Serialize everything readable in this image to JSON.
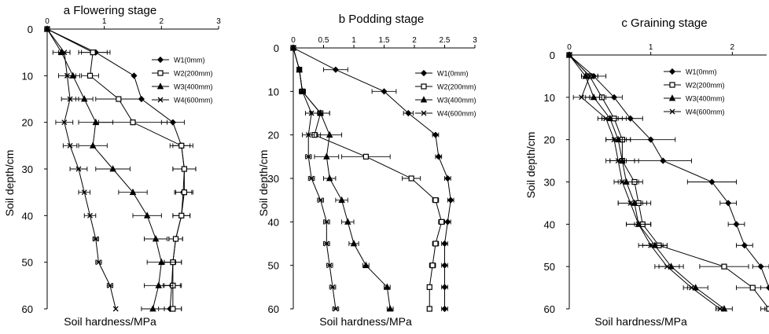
{
  "chart_data": [
    {
      "type": "line",
      "title": "a Flowering stage",
      "xlabel": "Soil hardness/MPa",
      "ylabel": "Soil depth/cm",
      "xlim": [
        0,
        3
      ],
      "ylim": [
        0,
        60
      ],
      "x_ticks": [
        "0",
        "1",
        "2",
        "3"
      ],
      "y_ticks": [
        "0",
        "10",
        "20",
        "30",
        "40",
        "50",
        "60"
      ],
      "depths": [
        0,
        5,
        10,
        15,
        20,
        25,
        30,
        35,
        40,
        45,
        50,
        55,
        60
      ],
      "legend_position": "right",
      "series": [
        {
          "name": "W1(0mm)",
          "marker": "diamond",
          "values": [
            0,
            0.85,
            1.52,
            1.65,
            2.2,
            2.35,
            2.4,
            2.38,
            2.35,
            2.25,
            2.2,
            2.18,
            2.15
          ],
          "errors": [
            0,
            0.25,
            0,
            0,
            0.2,
            0.15,
            0.2,
            0.15,
            0.15,
            0.12,
            0.15,
            0.15,
            0.2
          ]
        },
        {
          "name": "W2(200mm)",
          "marker": "square",
          "values": [
            0,
            0.8,
            0.75,
            1.25,
            1.5,
            2.35,
            2.4,
            2.4,
            2.35,
            2.25,
            2.2,
            2.2,
            2.2
          ],
          "errors": [
            0,
            0.25,
            0.15,
            0.4,
            0.6,
            0.2,
            0.2,
            0.15,
            0.15,
            0.12,
            0.15,
            0.15,
            0.15
          ]
        },
        {
          "name": "W3(400mm)",
          "marker": "triangle",
          "values": [
            0,
            0.25,
            0.45,
            0.65,
            0.85,
            0.8,
            1.15,
            1.5,
            1.75,
            1.9,
            2.0,
            1.95,
            1.85
          ],
          "errors": [
            0,
            0.15,
            0.12,
            0.15,
            0.3,
            0.25,
            0.3,
            0.25,
            0.25,
            0.2,
            0.25,
            0.25,
            0.2
          ]
        },
        {
          "name": "W4(600mm)",
          "marker": "x",
          "values": [
            0,
            0.3,
            0.35,
            0.4,
            0.3,
            0.4,
            0.55,
            0.65,
            0.75,
            0.85,
            0.9,
            1.1,
            1.2
          ],
          "errors": [
            0,
            0.1,
            0.15,
            0.15,
            0.15,
            0.12,
            0.15,
            0.1,
            0.1,
            0.05,
            0.05,
            0.05,
            0
          ]
        }
      ]
    },
    {
      "type": "line",
      "title": "b Podding stage",
      "xlabel": "Soil hardness/MPa",
      "ylabel": "Soil depth/cm",
      "xlim": [
        0,
        3
      ],
      "ylim": [
        0,
        60
      ],
      "x_ticks": [
        "0",
        "0.5",
        "1",
        "1.5",
        "2",
        "2.5",
        "3"
      ],
      "y_ticks": [
        "0",
        "10",
        "20",
        "30",
        "40",
        "50",
        "60"
      ],
      "depths": [
        0,
        5,
        10,
        15,
        20,
        25,
        30,
        35,
        40,
        45,
        50,
        55,
        60
      ],
      "legend_position": "right",
      "series": [
        {
          "name": "W1(0mm)",
          "marker": "diamond",
          "values": [
            0,
            0.7,
            1.5,
            1.9,
            2.35,
            2.4,
            2.55,
            2.6,
            2.55,
            2.5,
            2.5,
            2.5,
            2.5
          ],
          "errors": [
            0,
            0.2,
            0.2,
            0.08,
            0.05,
            0.05,
            0.05,
            0.05,
            0.05,
            0.05,
            0.05,
            0.05,
            0.05
          ]
        },
        {
          "name": "W2(200mm)",
          "marker": "square",
          "values": [
            0,
            0.1,
            0.15,
            0.45,
            0.35,
            1.2,
            1.95,
            2.35,
            2.45,
            2.35,
            2.3,
            2.25,
            2.25
          ],
          "errors": [
            0,
            0.03,
            0.05,
            0.15,
            0.1,
            0.4,
            0.15,
            0.05,
            0.05,
            0.05,
            0.05,
            0.03,
            0.03
          ]
        },
        {
          "name": "W3(400mm)",
          "marker": "triangle",
          "values": [
            0,
            0.1,
            0.15,
            0.45,
            0.6,
            0.55,
            0.6,
            0.8,
            0.9,
            1.0,
            1.2,
            1.55,
            1.6
          ],
          "errors": [
            0,
            0.03,
            0.05,
            0.15,
            0.2,
            0.2,
            0.1,
            0.1,
            0.1,
            0.08,
            0.05,
            0.05,
            0.05
          ]
        },
        {
          "name": "W4(600mm)",
          "marker": "x",
          "values": [
            0,
            0.1,
            0.15,
            0.3,
            0.25,
            0.25,
            0.3,
            0.45,
            0.55,
            0.55,
            0.6,
            0.65,
            0.7
          ],
          "errors": [
            0,
            0.03,
            0.05,
            0.1,
            0.1,
            0.05,
            0.05,
            0.05,
            0.05,
            0.05,
            0.05,
            0.05,
            0.05
          ]
        }
      ]
    },
    {
      "type": "line",
      "title": "c Graining stage",
      "xlabel": "Soil hardness/MPa",
      "ylabel": "Soil depth/cm",
      "xlim": [
        0,
        3
      ],
      "ylim": [
        0,
        60
      ],
      "x_ticks": [
        "0",
        "1",
        "2"
      ],
      "y_ticks": [
        "0",
        "10",
        "20",
        "30",
        "40",
        "50",
        "60"
      ],
      "depths": [
        0,
        5,
        10,
        15,
        20,
        25,
        30,
        35,
        40,
        45,
        50,
        55,
        60
      ],
      "legend_position": "right",
      "series": [
        {
          "name": "W1(0mm)",
          "marker": "diamond",
          "values": [
            0,
            0.3,
            0.55,
            0.75,
            1.0,
            1.15,
            1.75,
            1.95,
            2.05,
            2.15,
            2.35,
            2.45,
            2.5
          ],
          "errors": [
            0,
            0.15,
            0.1,
            0.15,
            0.3,
            0.35,
            0.3,
            0.1,
            0.1,
            0.1,
            0.1,
            0.1,
            0.1
          ]
        },
        {
          "name": "W2(200mm)",
          "marker": "square",
          "values": [
            0,
            0.25,
            0.4,
            0.55,
            0.65,
            0.65,
            0.8,
            0.85,
            0.9,
            1.1,
            1.9,
            2.25,
            2.45
          ],
          "errors": [
            0,
            0.1,
            0.15,
            0.15,
            0.1,
            0.2,
            0.1,
            0.1,
            0.1,
            0.1,
            0.3,
            0.2,
            0.1
          ]
        },
        {
          "name": "W3(400mm)",
          "marker": "triangle",
          "values": [
            0,
            0.2,
            0.3,
            0.5,
            0.6,
            0.65,
            0.7,
            0.8,
            0.85,
            1.05,
            1.25,
            1.55,
            1.9
          ],
          "errors": [
            0,
            0.05,
            0.1,
            0.15,
            0.15,
            0.15,
            0.15,
            0.2,
            0.15,
            0.15,
            0.15,
            0.15,
            0.1
          ]
        },
        {
          "name": "W4(600mm)",
          "marker": "x",
          "values": [
            0,
            0.25,
            0.15,
            0.45,
            0.55,
            0.6,
            0.65,
            0.75,
            0.85,
            1.0,
            1.2,
            1.5,
            1.85
          ],
          "errors": [
            0,
            0.1,
            0.1,
            0.05,
            0.1,
            0.1,
            0.05,
            0.15,
            0.15,
            0.15,
            0.15,
            0.05,
            0.05
          ]
        }
      ]
    }
  ]
}
